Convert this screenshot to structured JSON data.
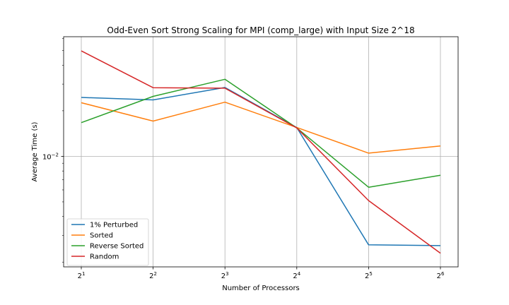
{
  "chart_data": {
    "type": "line",
    "title": "Odd-Even Sort Strong Scaling for MPI (comp_large) with Input Size 2^18",
    "xlabel": "Number of Processors",
    "ylabel": "Average Time (s)",
    "x": [
      2,
      4,
      8,
      16,
      32,
      64
    ],
    "xticks": [
      {
        "base": "2",
        "exp": "1"
      },
      {
        "base": "2",
        "exp": "2"
      },
      {
        "base": "2",
        "exp": "3"
      },
      {
        "base": "2",
        "exp": "4"
      },
      {
        "base": "2",
        "exp": "5"
      },
      {
        "base": "2",
        "exp": "6"
      }
    ],
    "xscale": "log2",
    "yscale": "log10",
    "ylim": [
      0.00186,
      0.0617
    ],
    "ytick": {
      "value": 0.01,
      "base": "10",
      "exp": "−2"
    },
    "grid": true,
    "legend_position": "lower-left",
    "series": [
      {
        "name": "1% Perturbed",
        "color": "#1f77b4",
        "values": [
          0.0245,
          0.0236,
          0.0285,
          0.0155,
          0.0026,
          0.00257
        ]
      },
      {
        "name": "Sorted",
        "color": "#ff7f0e",
        "values": [
          0.0226,
          0.0171,
          0.0228,
          0.0155,
          0.0105,
          0.0117
        ]
      },
      {
        "name": "Reverse Sorted",
        "color": "#2ca02c",
        "values": [
          0.0167,
          0.0249,
          0.0323,
          0.0154,
          0.00625,
          0.0075
        ]
      },
      {
        "name": "Random",
        "color": "#d62728",
        "values": [
          0.0497,
          0.0284,
          0.0282,
          0.0154,
          0.0051,
          0.00229
        ]
      }
    ]
  }
}
